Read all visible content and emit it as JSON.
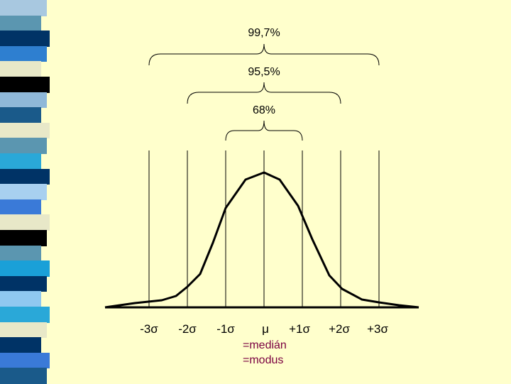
{
  "slide": {
    "background": "#ffffcc",
    "stripe_colors": [
      "#a8c8e0",
      "#5b96b0",
      "#003366",
      "#2e7fd0",
      "#e8e8c8",
      "#000000",
      "#8fb8d8",
      "#1a5a8a",
      "#e8e8c8",
      "#5b96b0",
      "#2aa8d8",
      "#003366",
      "#a8d0f0",
      "#3a7ad8",
      "#e8e8c8",
      "#000000",
      "#5b96b0",
      "#1aa0d8",
      "#003366",
      "#8fc8f0",
      "#2aa8d8",
      "#e8e8c8",
      "#003366",
      "#3a7ad8",
      "#1a5a8a"
    ],
    "curve_color": "#000000"
  },
  "brackets": {
    "outer_label": "99,7%",
    "middle_label": "95,5%",
    "inner_label": "68%"
  },
  "axis": {
    "ticks": [
      "-3σ",
      "-2σ",
      "-1σ",
      "μ",
      "+1σ",
      "+2σ",
      "+3σ"
    ],
    "mu_note_1": "=medián",
    "mu_note_2": "=modus"
  }
}
